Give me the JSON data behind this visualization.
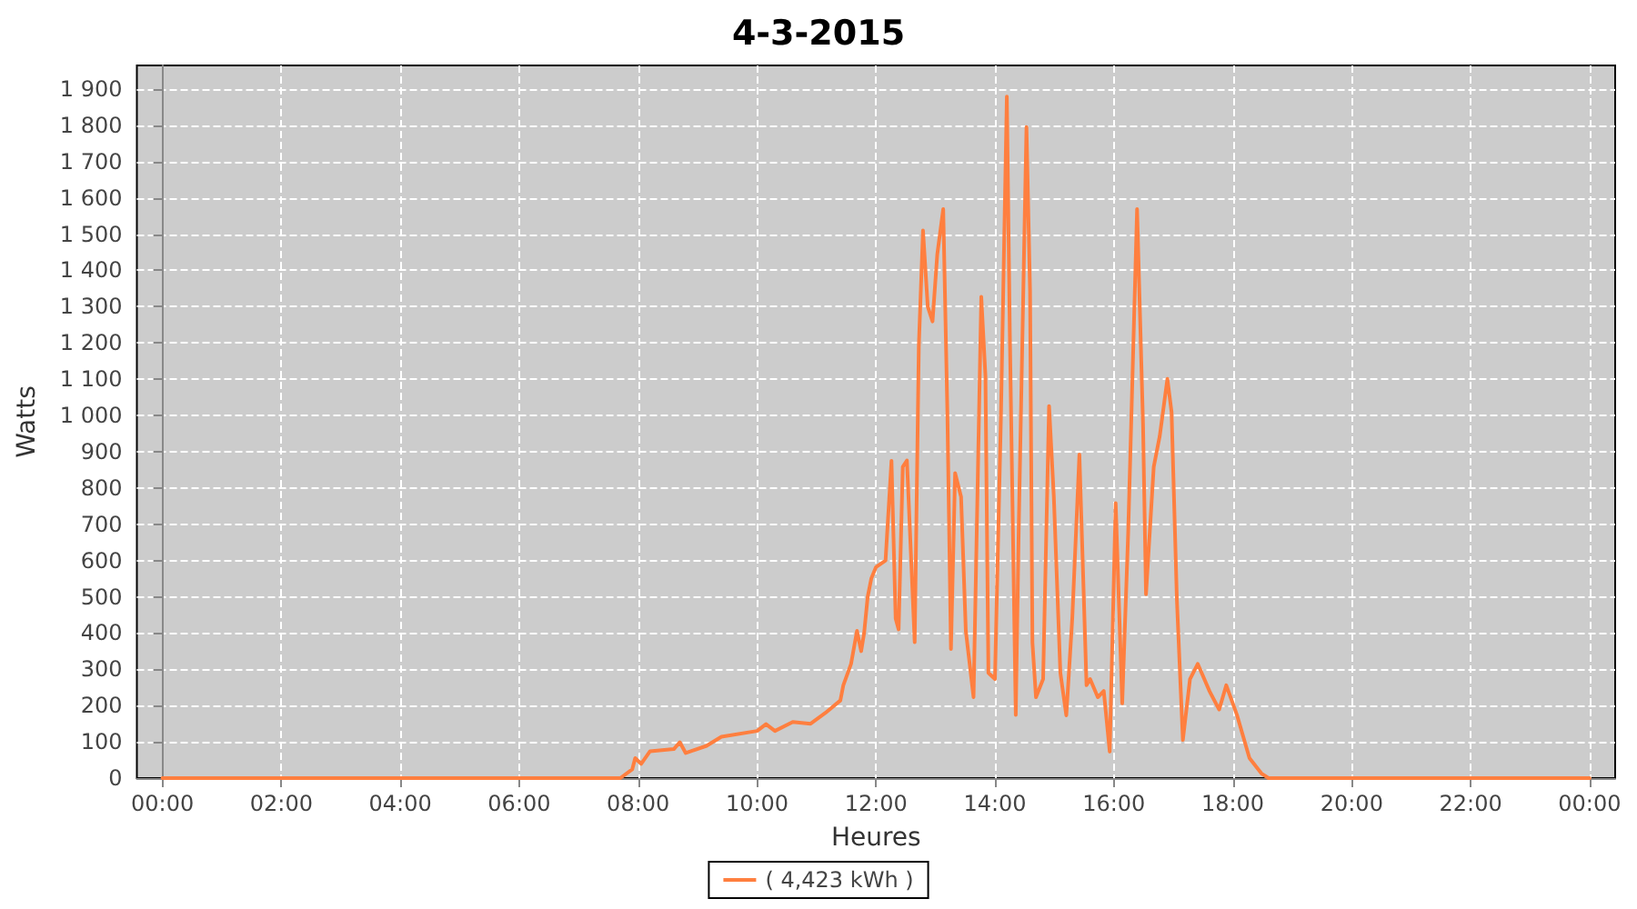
{
  "chart_data": {
    "type": "line",
    "title": "4-3-2015",
    "xlabel": "Heures",
    "ylabel": "Watts",
    "xlim": [
      -0.43,
      24.43
    ],
    "ylim": [
      0,
      1965
    ],
    "xticks": [
      {
        "value": 0,
        "label": "00:00"
      },
      {
        "value": 2,
        "label": "02:00"
      },
      {
        "value": 4,
        "label": "04:00"
      },
      {
        "value": 6,
        "label": "06:00"
      },
      {
        "value": 8,
        "label": "08:00"
      },
      {
        "value": 10,
        "label": "10:00"
      },
      {
        "value": 12,
        "label": "12:00"
      },
      {
        "value": 14,
        "label": "14:00"
      },
      {
        "value": 16,
        "label": "16:00"
      },
      {
        "value": 18,
        "label": "18:00"
      },
      {
        "value": 20,
        "label": "20:00"
      },
      {
        "value": 22,
        "label": "22:00"
      },
      {
        "value": 24,
        "label": "00:00"
      }
    ],
    "yticks": [
      0,
      100,
      200,
      300,
      400,
      500,
      600,
      700,
      800,
      900,
      {
        "value": 1000,
        "label": "1 000"
      },
      {
        "value": 1100,
        "label": "1 100"
      },
      {
        "value": 1200,
        "label": "1 200"
      },
      {
        "value": 1300,
        "label": "1 300"
      },
      {
        "value": 1400,
        "label": "1 400"
      },
      {
        "value": 1500,
        "label": "1 500"
      },
      {
        "value": 1600,
        "label": "1 600"
      },
      {
        "value": 1700,
        "label": "1 700"
      },
      {
        "value": 1800,
        "label": "1 800"
      },
      {
        "value": 1900,
        "label": "1 900"
      }
    ],
    "grid": true,
    "legend": "bottom",
    "line_style": "solid",
    "series": [
      {
        "name": "( 4,423 kWh )",
        "color": "#ff7f3f",
        "x": [
          0,
          7.7,
          7.9,
          7.95,
          8.05,
          8.2,
          8.6,
          8.7,
          8.8,
          9.15,
          9.4,
          10.0,
          10.15,
          10.3,
          10.6,
          10.9,
          11.15,
          11.4,
          11.45,
          11.58,
          11.68,
          11.75,
          11.8,
          11.86,
          11.92,
          12.0,
          12.16,
          12.26,
          12.33,
          12.38,
          12.45,
          12.52,
          12.65,
          12.72,
          12.79,
          12.87,
          12.95,
          13.03,
          13.13,
          13.2,
          13.26,
          13.33,
          13.43,
          13.51,
          13.64,
          13.77,
          13.84,
          13.89,
          14.0,
          14.1,
          14.2,
          14.25,
          14.35,
          14.4,
          14.53,
          14.59,
          14.63,
          14.69,
          14.81,
          14.91,
          14.99,
          15.1,
          15.2,
          15.3,
          15.42,
          15.54,
          15.6,
          15.73,
          15.83,
          15.93,
          16.03,
          16.14,
          16.24,
          16.39,
          16.49,
          16.54,
          16.67,
          16.77,
          16.9,
          16.97,
          17.06,
          17.16,
          17.28,
          17.41,
          17.61,
          17.77,
          17.89,
          18.07,
          18.28,
          18.48,
          18.6,
          24
        ],
        "values": [
          0,
          0,
          24,
          55,
          39,
          74,
          80,
          99,
          69,
          89,
          114,
          130,
          149,
          130,
          155,
          150,
          180,
          214,
          256,
          315,
          406,
          350,
          400,
          500,
          550,
          582,
          600,
          875,
          440,
          410,
          858,
          876,
          375,
          1193,
          1510,
          1300,
          1259,
          1444,
          1569,
          1009,
          356,
          841,
          776,
          406,
          223,
          1327,
          1109,
          290,
          273,
          992,
          1879,
          1228,
          174,
          691,
          1795,
          1343,
          374,
          223,
          273,
          1026,
          776,
          290,
          173,
          440,
          892,
          256,
          273,
          223,
          240,
          73,
          758,
          206,
          674,
          1569,
          976,
          507,
          858,
          942,
          1101,
          1009,
          490,
          105,
          273,
          315,
          239,
          189,
          256,
          174,
          55,
          13,
          0,
          0
        ]
      }
    ]
  }
}
